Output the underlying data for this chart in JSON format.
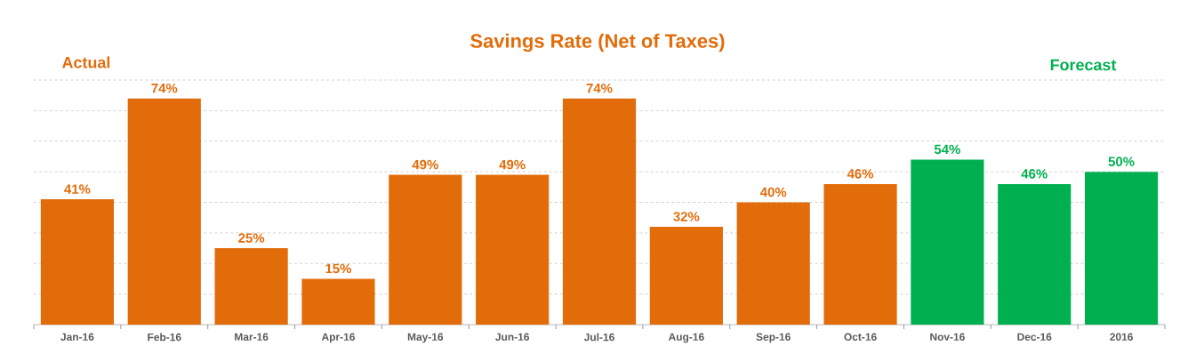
{
  "chart_data": {
    "type": "bar",
    "title": "Savings Rate (Net of Taxes)",
    "categories": [
      "Jan-16",
      "Feb-16",
      "Mar-16",
      "Apr-16",
      "May-16",
      "Jun-16",
      "Jul-16",
      "Aug-16",
      "Sep-16",
      "Oct-16",
      "Nov-16",
      "Dec-16",
      "2016"
    ],
    "values": [
      41,
      74,
      25,
      15,
      49,
      49,
      74,
      32,
      40,
      46,
      54,
      46,
      50
    ],
    "value_labels": [
      "41%",
      "74%",
      "25%",
      "15%",
      "49%",
      "49%",
      "74%",
      "32%",
      "40%",
      "46%",
      "54%",
      "46%",
      "50%"
    ],
    "colors": [
      "#e36c0a",
      "#e36c0a",
      "#e36c0a",
      "#e36c0a",
      "#e36c0a",
      "#e36c0a",
      "#e36c0a",
      "#e36c0a",
      "#e36c0a",
      "#e36c0a",
      "#00b050",
      "#00b050",
      "#00b050"
    ],
    "annotations": [
      "Actual",
      "Forecast"
    ],
    "ylim": [
      0,
      80
    ],
    "yticks": [
      {
        "value": 10,
        "label": null
      },
      {
        "value": 20,
        "label": null
      },
      {
        "value": 30,
        "label": null
      },
      {
        "value": 40,
        "label": null
      },
      {
        "value": 50,
        "label": null
      },
      {
        "value": 60,
        "label": null
      },
      {
        "value": 70,
        "label": null
      },
      {
        "value": 80,
        "label": null
      }
    ],
    "tick_labels": "x",
    "grid": "y"
  }
}
